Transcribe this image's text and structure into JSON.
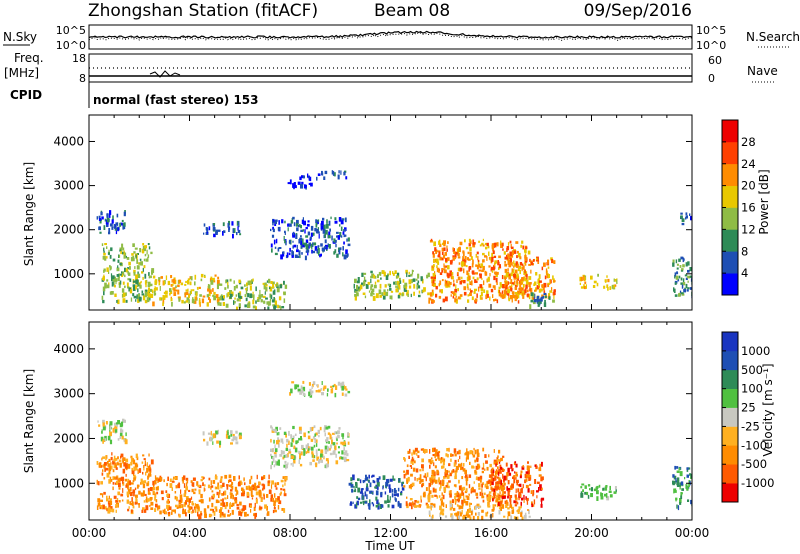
{
  "header": {
    "station": "Zhongshan Station (fitACF)",
    "beam": "Beam 08",
    "date": "09/Sep/2016"
  },
  "strips": {
    "nsky_label": "N.Sky",
    "nsky_ticks": [
      "10^5",
      "10^0"
    ],
    "nsearch_label": "N.Search",
    "nsearch_ticks": [
      "10^5",
      "10^0"
    ],
    "freq_label": "Freq.",
    "freq_unit": "[MHz]",
    "freq_ticks": [
      "18",
      "8"
    ],
    "nave_label": "Nave",
    "nave_ticks": [
      "60",
      "0"
    ],
    "cpid_label": "CPID",
    "cpid_value": "normal (fast stereo) 153"
  },
  "chart_data": [
    {
      "type": "heatmap",
      "name": "power",
      "ylabel": "Slant Range [km]",
      "y_ticks": [
        "4000",
        "3000",
        "2000",
        "1000"
      ],
      "ylim": [
        180,
        4600
      ],
      "x_ticks": [
        "00:00",
        "04:00",
        "08:00",
        "12:00",
        "16:00",
        "20:00",
        "00:00"
      ],
      "xlim_hours": [
        0,
        24
      ],
      "colorbar": {
        "label": "Power [dB]",
        "ticks": [
          "28",
          "24",
          "20",
          "16",
          "12",
          "8",
          "4"
        ],
        "colors": [
          "#0000ff",
          "#1e4fb4",
          "#2e8b57",
          "#8fbc45",
          "#e8c800",
          "#ff8c00",
          "#ff4000",
          "#ee0000"
        ]
      },
      "regions": [
        {
          "x": [
            0.5,
            2.5
          ],
          "y": [
            400,
            1700
          ],
          "level": 3
        },
        {
          "x": [
            2.5,
            5.2
          ],
          "y": [
            350,
            1000
          ],
          "level": 4
        },
        {
          "x": [
            5.2,
            7.8
          ],
          "y": [
            250,
            900
          ],
          "level": 3
        },
        {
          "x": [
            0.3,
            1.5
          ],
          "y": [
            1950,
            2450
          ],
          "level": 1
        },
        {
          "x": [
            4.5,
            6.0
          ],
          "y": [
            1900,
            2200
          ],
          "level": 1
        },
        {
          "x": [
            7.2,
            10.3
          ],
          "y": [
            1400,
            2300
          ],
          "level": 1
        },
        {
          "x": [
            7.9,
            8.8
          ],
          "y": [
            3000,
            3300
          ],
          "level": 0
        },
        {
          "x": [
            9.0,
            10.3
          ],
          "y": [
            3200,
            3350
          ],
          "level": 1
        },
        {
          "x": [
            10.5,
            13.5
          ],
          "y": [
            500,
            1100
          ],
          "level": 3
        },
        {
          "x": [
            13.5,
            17.5
          ],
          "y": [
            400,
            1800
          ],
          "level": 5
        },
        {
          "x": [
            16.5,
            18.5
          ],
          "y": [
            500,
            1400
          ],
          "level": 5
        },
        {
          "x": [
            17.5,
            18.5
          ],
          "y": [
            300,
            600
          ],
          "level": 2
        },
        {
          "x": [
            19.5,
            21.0
          ],
          "y": [
            700,
            1000
          ],
          "level": 4
        },
        {
          "x": [
            23.2,
            24.0
          ],
          "y": [
            500,
            1400
          ],
          "level": 2
        },
        {
          "x": [
            23.5,
            24.0
          ],
          "y": [
            2100,
            2400
          ],
          "level": 1
        }
      ]
    },
    {
      "type": "heatmap",
      "name": "velocity",
      "ylabel": "Slant Range [km]",
      "y_ticks": [
        "4000",
        "3000",
        "2000",
        "1000"
      ],
      "ylim": [
        180,
        4600
      ],
      "x_ticks": [
        "00:00",
        "04:00",
        "08:00",
        "12:00",
        "16:00",
        "20:00",
        "00:00"
      ],
      "xlim_hours": [
        0,
        24
      ],
      "xlabel": "Time UT",
      "colorbar": {
        "label": "Velocity [m s⁻¹]",
        "ticks": [
          "1000",
          "500",
          "100",
          "25",
          "-25",
          "-100",
          "-500",
          "-1000"
        ],
        "colors": [
          "#ee0000",
          "#ff5a00",
          "#ff8c00",
          "#ffb020",
          "#c8c8c0",
          "#50c040",
          "#2e8b57",
          "#1e4fb4",
          "#1a35c0"
        ]
      },
      "regions": [
        {
          "x": [
            0.3,
            2.5
          ],
          "y": [
            400,
            1700
          ],
          "level": 2
        },
        {
          "x": [
            2.5,
            7.8
          ],
          "y": [
            300,
            1200
          ],
          "level": 2
        },
        {
          "x": [
            0.3,
            1.5
          ],
          "y": [
            1950,
            2450
          ],
          "level": 4
        },
        {
          "x": [
            4.5,
            6.0
          ],
          "y": [
            1900,
            2200
          ],
          "level": 4
        },
        {
          "x": [
            7.2,
            10.3
          ],
          "y": [
            1400,
            2300
          ],
          "level": 4
        },
        {
          "x": [
            7.9,
            10.3
          ],
          "y": [
            3000,
            3300
          ],
          "level": 4
        },
        {
          "x": [
            10.3,
            12.5
          ],
          "y": [
            500,
            1200
          ],
          "level": 7
        },
        {
          "x": [
            12.5,
            16.5
          ],
          "y": [
            500,
            1800
          ],
          "level": 2
        },
        {
          "x": [
            16.0,
            18.0
          ],
          "y": [
            500,
            1500
          ],
          "level": 1
        },
        {
          "x": [
            13.5,
            17.5
          ],
          "y": [
            250,
            550
          ],
          "level": 3
        },
        {
          "x": [
            19.5,
            21.0
          ],
          "y": [
            700,
            1000
          ],
          "level": 5
        },
        {
          "x": [
            23.2,
            24.0
          ],
          "y": [
            500,
            1400
          ],
          "level": 6
        }
      ]
    }
  ]
}
